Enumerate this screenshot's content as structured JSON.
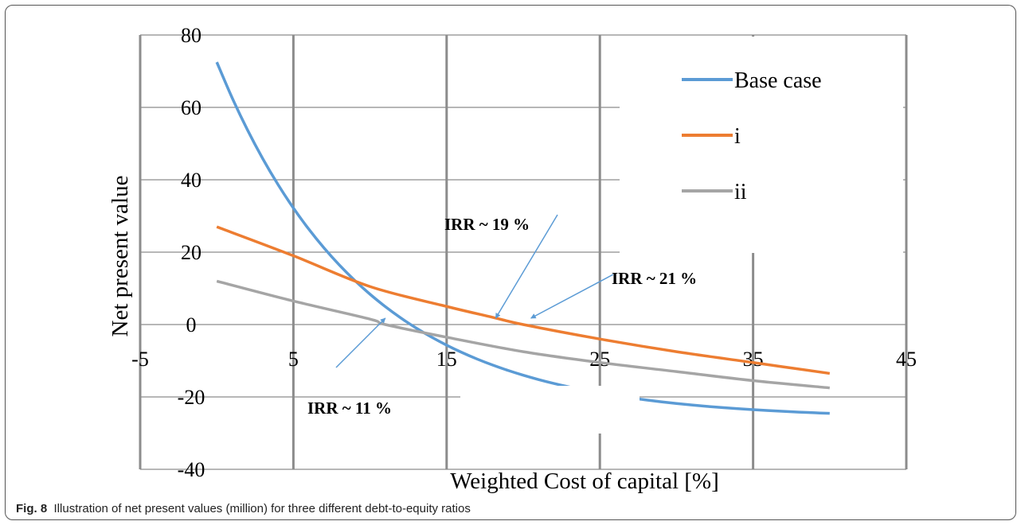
{
  "chart_data": {
    "type": "line",
    "title": "",
    "xlabel": "Weighted Cost of capital  [%]",
    "ylabel": "Net present value",
    "xlim": [
      -5,
      45
    ],
    "ylim": [
      -40,
      80
    ],
    "x_ticks": [
      -5,
      5,
      15,
      25,
      35,
      45
    ],
    "y_ticks": [
      -40,
      -20,
      0,
      20,
      40,
      60,
      80
    ],
    "grid": true,
    "legend_position": "top-right",
    "series": [
      {
        "name": "Base case",
        "color": "#5B9BD5",
        "x": [
          0,
          1,
          2,
          3,
          4,
          5,
          6,
          7,
          8,
          9,
          10,
          11,
          12,
          13,
          14,
          15,
          16,
          17,
          18,
          19,
          20,
          21,
          22,
          23,
          24,
          25,
          26,
          27,
          28,
          29,
          30,
          31,
          32,
          33,
          34,
          35,
          36,
          37,
          38,
          39,
          40
        ],
        "values": [
          72.5,
          62.9,
          54.5,
          47.1,
          40.6,
          34.9,
          29.8,
          25.3,
          21.3,
          17.7,
          14.5,
          11.6,
          9.0,
          6.7,
          4.6,
          2.7,
          1.0,
          -0.6,
          -2.0,
          -3.3,
          -4.5,
          -5.6,
          -6.6,
          -7.5,
          -8.3,
          -9.1,
          -9.8,
          -10.5,
          -11.1,
          -11.7,
          -12.2,
          -12.7,
          -13.2,
          -13.6,
          -14.0,
          -14.4,
          -14.8,
          -15.1,
          -15.4,
          -15.7,
          -21.0
        ]
      },
      {
        "name": "i",
        "color": "#ED7D31",
        "x": [
          0,
          5,
          10,
          15,
          18,
          20,
          25,
          30,
          35,
          40
        ],
        "values": [
          27,
          19,
          10.5,
          5,
          2,
          0,
          -4,
          -7.5,
          -10.5,
          -13.5
        ]
      },
      {
        "name": "ii",
        "color": "#A5A5A5",
        "x": [
          0,
          5,
          10,
          11,
          15,
          20,
          25,
          30,
          35,
          40
        ],
        "values": [
          12,
          6.5,
          1.5,
          0,
          -3.5,
          -7.5,
          -10.5,
          -13,
          -15.5,
          -17.5
        ]
      }
    ],
    "annotations": [
      {
        "text": "IRR ~ 19 %",
        "point": [
          18.2,
          0
        ]
      },
      {
        "text": "IRR ~ 21 %",
        "point": [
          20.5,
          0
        ]
      },
      {
        "text": "IRR ~ 11 %",
        "point": [
          11,
          0
        ]
      }
    ]
  },
  "caption": {
    "label": "Fig. 8",
    "text": "Illustration of net present values (million) for three different debt-to-equity ratios"
  }
}
